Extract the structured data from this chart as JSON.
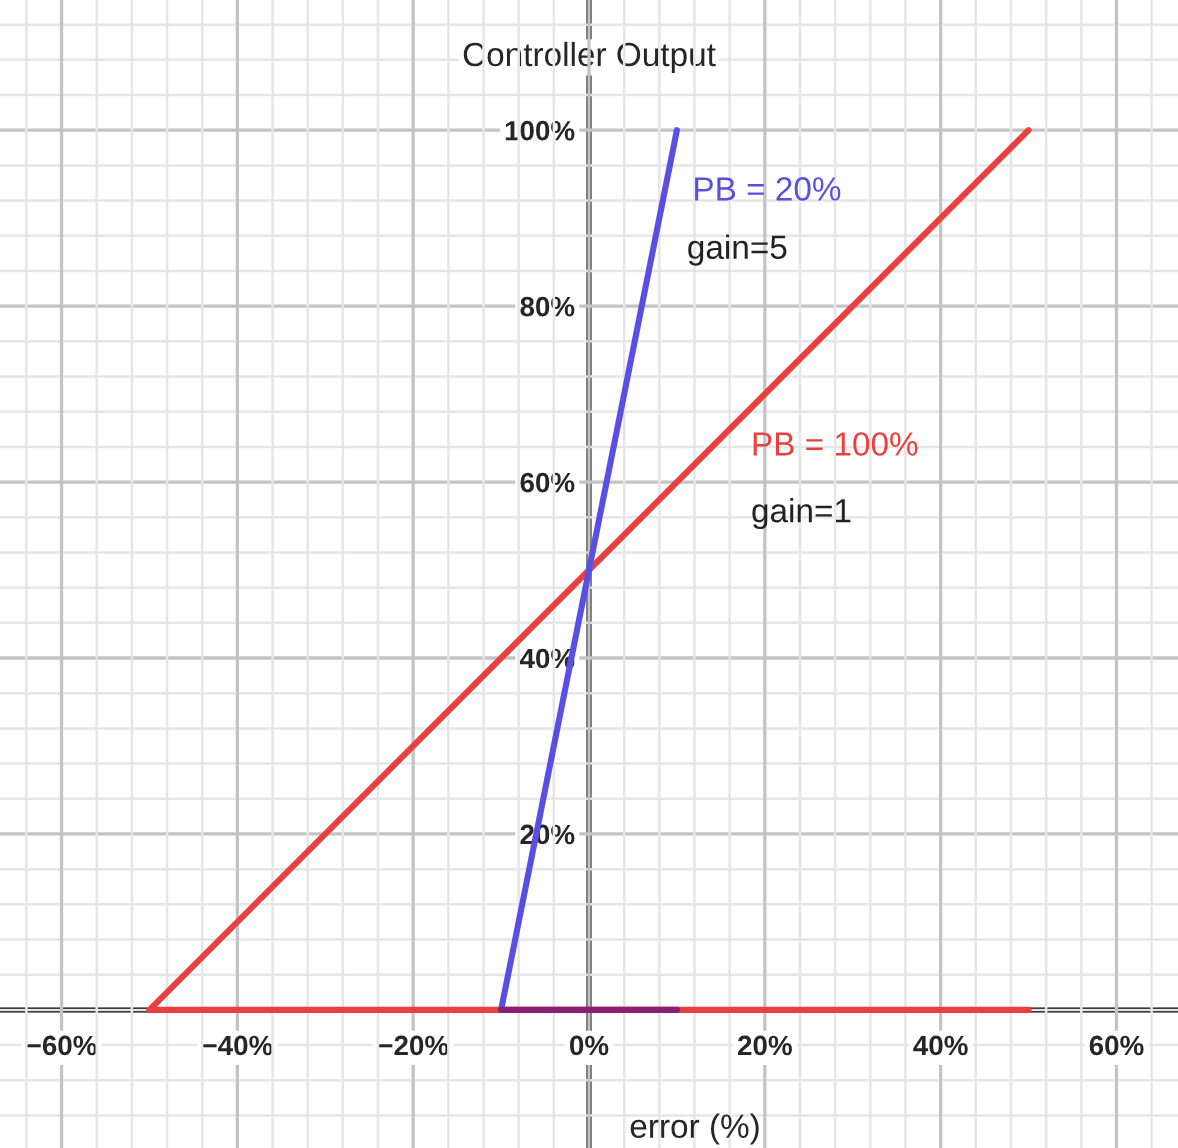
{
  "chart_data": {
    "type": "line",
    "xlabel": "error (%)",
    "ylabel": "Controller Output",
    "xlim": [
      -67,
      67
    ],
    "ylim": [
      -15.7,
      114.8
    ],
    "xticks": [
      {
        "value": -60,
        "label": "−60%"
      },
      {
        "value": -40,
        "label": "−40%"
      },
      {
        "value": -20,
        "label": "−20%"
      },
      {
        "value": 0,
        "label": "0%"
      },
      {
        "value": 20,
        "label": "20%"
      },
      {
        "value": 40,
        "label": "40%"
      },
      {
        "value": 60,
        "label": "60%"
      }
    ],
    "yticks": [
      {
        "value": 20,
        "label": "20%"
      },
      {
        "value": 40,
        "label": "40%"
      },
      {
        "value": 60,
        "label": "60%"
      },
      {
        "value": 80,
        "label": "80%"
      },
      {
        "value": 100,
        "label": "100%"
      }
    ],
    "grid": true,
    "series": [
      {
        "name": "PB = 100%",
        "color": "#e8403f",
        "x": [
          -50,
          50
        ],
        "values": [
          0,
          100
        ]
      },
      {
        "color": "#e8403f",
        "x": [
          -50,
          50
        ],
        "values": [
          0,
          0
        ]
      },
      {
        "name": "PB = 20%",
        "color": "#5a4fe0",
        "x": [
          -10,
          10
        ],
        "values": [
          0,
          100
        ]
      },
      {
        "color": "#8b1e6e",
        "x": [
          -10,
          10
        ],
        "values": [
          0,
          0
        ]
      }
    ],
    "annotations": [
      "gain=1",
      "gain=5"
    ]
  }
}
